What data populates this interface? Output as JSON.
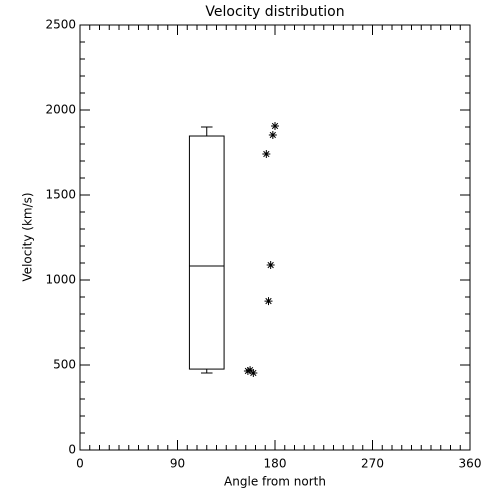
{
  "chart_data": {
    "type": "box",
    "title": "Velocity distribution",
    "xlabel": "Angle from north",
    "ylabel": "Velocity (km/s)",
    "xlim": [
      0,
      360
    ],
    "xticks": [
      0,
      90,
      180,
      270,
      360
    ],
    "xminor": 9,
    "ylim": [
      0,
      2500
    ],
    "yticks": [
      0,
      500,
      1000,
      1500,
      2000,
      2500
    ],
    "yminor": 5,
    "color": "#000000",
    "box": {
      "x": 117,
      "width": 32,
      "whisker_low": 453,
      "q1": 476,
      "median": 1082,
      "q3": 1847,
      "whisker_high": 1900
    },
    "points": {
      "x": [
        180,
        178,
        172,
        176,
        174,
        157,
        160,
        155
      ],
      "y": [
        1906,
        1853,
        1741,
        1088,
        876,
        470,
        453,
        465
      ]
    }
  }
}
